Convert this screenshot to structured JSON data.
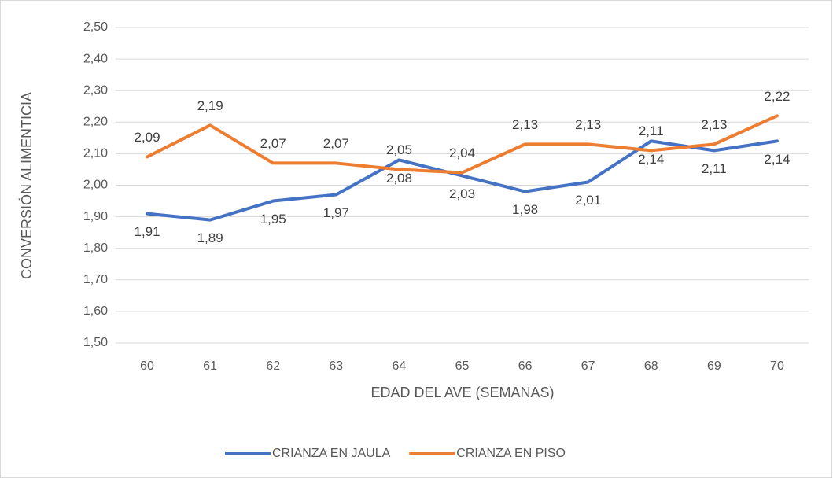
{
  "chart_data": {
    "type": "line",
    "x_label": "EDAD DEL AVE (SEMANAS)",
    "y_label": "CONVERSIÓN ALIMENTICIA",
    "categories": [
      60,
      61,
      62,
      63,
      64,
      65,
      66,
      67,
      68,
      69,
      70
    ],
    "series": [
      {
        "name": "CRIANZA EN JAULA",
        "color": "#4472c4",
        "values": [
          1.91,
          1.89,
          1.95,
          1.97,
          2.08,
          2.03,
          1.98,
          2.01,
          2.14,
          2.11,
          2.14
        ],
        "value_labels": [
          "1,91",
          "1,89",
          "1,95",
          "1,97",
          "2,08",
          "2,03",
          "1,98",
          "2,01",
          "2,14",
          "2,11",
          "2,14"
        ]
      },
      {
        "name": "CRIANZA EN PISO",
        "color": "#ed7d31",
        "values": [
          2.09,
          2.19,
          2.07,
          2.07,
          2.05,
          2.04,
          2.13,
          2.13,
          2.11,
          2.13,
          2.22
        ],
        "value_labels": [
          "2,09",
          "2,19",
          "2,07",
          "2,07",
          "2,05",
          "2,04",
          "2,13",
          "2,13",
          "2,11",
          "2,13",
          "2,22"
        ]
      }
    ],
    "ylim": [
      1.5,
      2.5
    ],
    "yticks": [
      {
        "value": 1.5,
        "label": "1,50"
      },
      {
        "value": 1.6,
        "label": "1,60"
      },
      {
        "value": 1.7,
        "label": "1,70"
      },
      {
        "value": 1.8,
        "label": "1,80"
      },
      {
        "value": 1.9,
        "label": "1,90"
      },
      {
        "value": 2.0,
        "label": "2,00"
      },
      {
        "value": 2.1,
        "label": "2,10"
      },
      {
        "value": 2.2,
        "label": "2,20"
      },
      {
        "value": 2.3,
        "label": "2,30"
      },
      {
        "value": 2.4,
        "label": "2,40"
      },
      {
        "value": 2.5,
        "label": "2,50"
      }
    ],
    "grid": true,
    "legend": "bottom"
  }
}
